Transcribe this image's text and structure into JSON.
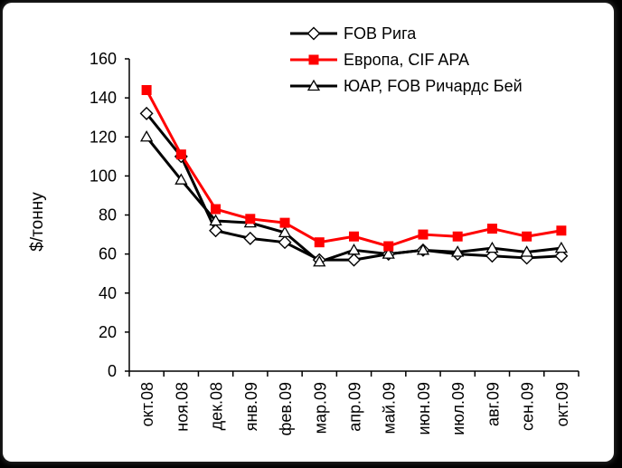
{
  "chart_data": {
    "type": "line",
    "title": "",
    "xlabel": "",
    "ylabel": "$/тонну",
    "ylim": [
      0,
      160
    ],
    "yticks": [
      0,
      20,
      40,
      60,
      80,
      100,
      120,
      140,
      160
    ],
    "grid": false,
    "legend_position": "top-right",
    "categories": [
      "окт.08",
      "ноя.08",
      "дек.08",
      "янв.09",
      "фев.09",
      "мар.09",
      "апр.09",
      "май.09",
      "июн.09",
      "июл.09",
      "авг.09",
      "сен.09",
      "окт.09"
    ],
    "series": [
      {
        "name": "FOB Рига",
        "marker": "diamond",
        "color": "#000000",
        "values": [
          132,
          110,
          72,
          68,
          66,
          57,
          57,
          60,
          62,
          60,
          59,
          58,
          59
        ]
      },
      {
        "name": "Европа, CIF APA",
        "marker": "square",
        "color": "#ff0000",
        "values": [
          144,
          111,
          83,
          78,
          76,
          66,
          69,
          64,
          70,
          69,
          73,
          69,
          72
        ]
      },
      {
        "name": "ЮАР, FOB Ричардс Бей",
        "marker": "triangle",
        "color": "#000000",
        "values": [
          120,
          98,
          77,
          76,
          71,
          56,
          62,
          60,
          62,
          61,
          63,
          61,
          63
        ]
      }
    ]
  }
}
